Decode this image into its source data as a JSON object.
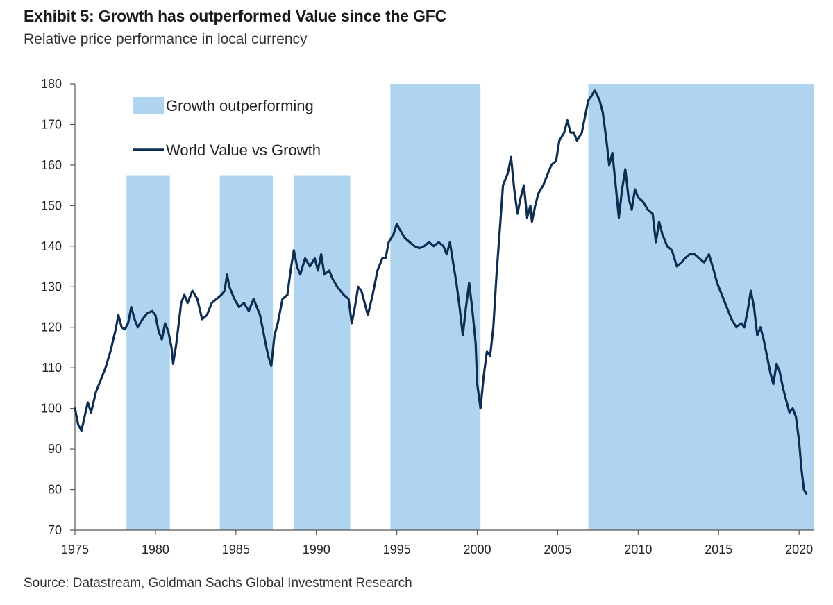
{
  "header": {
    "title": "Exhibit 5: Growth has outperformed Value since the GFC",
    "subtitle": "Relative price performance in local currency"
  },
  "footer": {
    "source": "Source: Datastream, Goldman Sachs Global Investment Research"
  },
  "colors": {
    "band": "#aed4f0",
    "line": "#0d2d52",
    "axis": "#555555"
  },
  "chart_data": {
    "type": "line",
    "title": "",
    "xlabel": "",
    "ylabel": "",
    "xlim": [
      1975,
      2020.9
    ],
    "ylim": [
      70,
      180
    ],
    "x_ticks": [
      1975,
      1980,
      1985,
      1990,
      1995,
      2000,
      2005,
      2010,
      2015,
      2020
    ],
    "y_ticks": [
      70,
      80,
      90,
      100,
      110,
      120,
      130,
      140,
      150,
      160,
      170,
      180
    ],
    "grid": false,
    "legend": {
      "placement": "top-left",
      "entries": [
        {
          "label": "Growth outperforming",
          "kind": "band"
        },
        {
          "label": "World Value vs Growth",
          "kind": "line"
        }
      ]
    },
    "bands": [
      {
        "label": "Growth outperforming",
        "x_start": 1978.2,
        "x_end": 1980.9,
        "y_top": 157.5
      },
      {
        "label": "Growth outperforming",
        "x_start": 1984.0,
        "x_end": 1987.3,
        "y_top": 157.5
      },
      {
        "label": "Growth outperforming",
        "x_start": 1988.6,
        "x_end": 1992.1,
        "y_top": 157.5
      },
      {
        "label": "Growth outperforming",
        "x_start": 1994.6,
        "x_end": 2000.2,
        "y_top": 180
      },
      {
        "label": "Growth outperforming",
        "x_start": 2006.9,
        "x_end": 2020.9,
        "y_top": 180
      }
    ],
    "series": [
      {
        "name": "World Value vs Growth",
        "points": [
          [
            1975.0,
            100
          ],
          [
            1975.2,
            96
          ],
          [
            1975.4,
            94.5
          ],
          [
            1975.6,
            98
          ],
          [
            1975.8,
            101.5
          ],
          [
            1976.0,
            99
          ],
          [
            1976.3,
            104
          ],
          [
            1976.6,
            107
          ],
          [
            1976.9,
            110
          ],
          [
            1977.2,
            114
          ],
          [
            1977.5,
            119
          ],
          [
            1977.7,
            123
          ],
          [
            1977.9,
            120
          ],
          [
            1978.1,
            119.5
          ],
          [
            1978.3,
            121
          ],
          [
            1978.5,
            125
          ],
          [
            1978.7,
            122
          ],
          [
            1978.9,
            120
          ],
          [
            1979.2,
            122
          ],
          [
            1979.5,
            123.5
          ],
          [
            1979.8,
            124
          ],
          [
            1980.0,
            123
          ],
          [
            1980.2,
            119
          ],
          [
            1980.4,
            117
          ],
          [
            1980.6,
            121
          ],
          [
            1980.8,
            119
          ],
          [
            1981.0,
            115
          ],
          [
            1981.1,
            111
          ],
          [
            1981.3,
            116
          ],
          [
            1981.6,
            126
          ],
          [
            1981.8,
            128
          ],
          [
            1982.0,
            126
          ],
          [
            1982.3,
            129
          ],
          [
            1982.6,
            127
          ],
          [
            1982.9,
            122
          ],
          [
            1983.2,
            123
          ],
          [
            1983.5,
            126
          ],
          [
            1983.8,
            127
          ],
          [
            1984.1,
            128
          ],
          [
            1984.3,
            129
          ],
          [
            1984.45,
            133
          ],
          [
            1984.6,
            130
          ],
          [
            1984.9,
            127
          ],
          [
            1985.2,
            125
          ],
          [
            1985.5,
            126
          ],
          [
            1985.8,
            124
          ],
          [
            1986.1,
            127
          ],
          [
            1986.3,
            125
          ],
          [
            1986.5,
            123
          ],
          [
            1986.8,
            117
          ],
          [
            1987.0,
            113
          ],
          [
            1987.2,
            110.5
          ],
          [
            1987.4,
            118
          ],
          [
            1987.6,
            121
          ],
          [
            1987.9,
            127
          ],
          [
            1988.2,
            128
          ],
          [
            1988.4,
            134
          ],
          [
            1988.6,
            139
          ],
          [
            1988.8,
            135
          ],
          [
            1989.0,
            133
          ],
          [
            1989.3,
            137
          ],
          [
            1989.6,
            135
          ],
          [
            1989.9,
            137
          ],
          [
            1990.1,
            134
          ],
          [
            1990.3,
            138
          ],
          [
            1990.5,
            133
          ],
          [
            1990.8,
            134
          ],
          [
            1991.0,
            132
          ],
          [
            1991.3,
            130
          ],
          [
            1991.7,
            128
          ],
          [
            1992.0,
            127
          ],
          [
            1992.2,
            121
          ],
          [
            1992.4,
            125
          ],
          [
            1992.6,
            130
          ],
          [
            1992.8,
            129
          ],
          [
            1993.0,
            126
          ],
          [
            1993.2,
            123
          ],
          [
            1993.5,
            128
          ],
          [
            1993.8,
            134
          ],
          [
            1994.1,
            137
          ],
          [
            1994.3,
            137
          ],
          [
            1994.5,
            141
          ],
          [
            1994.8,
            143
          ],
          [
            1995.0,
            145.5
          ],
          [
            1995.2,
            144
          ],
          [
            1995.5,
            142
          ],
          [
            1995.8,
            141
          ],
          [
            1996.1,
            140
          ],
          [
            1996.4,
            139.5
          ],
          [
            1996.7,
            140
          ],
          [
            1997.0,
            141
          ],
          [
            1997.3,
            140
          ],
          [
            1997.6,
            141
          ],
          [
            1997.9,
            140
          ],
          [
            1998.1,
            138
          ],
          [
            1998.3,
            141
          ],
          [
            1998.5,
            136
          ],
          [
            1998.7,
            131
          ],
          [
            1998.9,
            125
          ],
          [
            1999.1,
            118
          ],
          [
            1999.3,
            125
          ],
          [
            1999.5,
            131
          ],
          [
            1999.7,
            124
          ],
          [
            1999.9,
            116
          ],
          [
            2000.0,
            106
          ],
          [
            2000.2,
            100
          ],
          [
            2000.4,
            108
          ],
          [
            2000.6,
            114
          ],
          [
            2000.8,
            113
          ],
          [
            2001.0,
            120
          ],
          [
            2001.2,
            133
          ],
          [
            2001.4,
            144
          ],
          [
            2001.6,
            155
          ],
          [
            2001.9,
            158
          ],
          [
            2002.1,
            162
          ],
          [
            2002.3,
            154
          ],
          [
            2002.5,
            148
          ],
          [
            2002.7,
            152
          ],
          [
            2002.9,
            155
          ],
          [
            2003.1,
            147
          ],
          [
            2003.3,
            150
          ],
          [
            2003.4,
            146
          ],
          [
            2003.6,
            150
          ],
          [
            2003.8,
            153
          ],
          [
            2004.1,
            155
          ],
          [
            2004.4,
            158
          ],
          [
            2004.6,
            160
          ],
          [
            2004.9,
            161
          ],
          [
            2005.1,
            166
          ],
          [
            2005.4,
            168
          ],
          [
            2005.6,
            171
          ],
          [
            2005.8,
            168
          ],
          [
            2006.0,
            168
          ],
          [
            2006.2,
            166
          ],
          [
            2006.5,
            168
          ],
          [
            2006.7,
            172
          ],
          [
            2006.9,
            176
          ],
          [
            2007.1,
            177
          ],
          [
            2007.3,
            178.5
          ],
          [
            2007.6,
            176
          ],
          [
            2007.8,
            173
          ],
          [
            2008.0,
            167
          ],
          [
            2008.2,
            160
          ],
          [
            2008.4,
            163
          ],
          [
            2008.6,
            155
          ],
          [
            2008.8,
            147
          ],
          [
            2009.0,
            154
          ],
          [
            2009.2,
            159
          ],
          [
            2009.4,
            152
          ],
          [
            2009.6,
            149
          ],
          [
            2009.8,
            154
          ],
          [
            2010.0,
            152
          ],
          [
            2010.3,
            151
          ],
          [
            2010.6,
            149
          ],
          [
            2010.9,
            148
          ],
          [
            2011.1,
            141
          ],
          [
            2011.3,
            146
          ],
          [
            2011.5,
            143
          ],
          [
            2011.8,
            140
          ],
          [
            2012.1,
            139
          ],
          [
            2012.4,
            135
          ],
          [
            2012.7,
            136
          ],
          [
            2012.9,
            137
          ],
          [
            2013.2,
            138
          ],
          [
            2013.5,
            138
          ],
          [
            2013.8,
            137
          ],
          [
            2014.1,
            136
          ],
          [
            2014.4,
            138
          ],
          [
            2014.7,
            134
          ],
          [
            2014.9,
            131
          ],
          [
            2015.2,
            128
          ],
          [
            2015.5,
            125
          ],
          [
            2015.8,
            122
          ],
          [
            2016.1,
            120
          ],
          [
            2016.4,
            121
          ],
          [
            2016.6,
            120
          ],
          [
            2016.8,
            124
          ],
          [
            2017.0,
            129
          ],
          [
            2017.2,
            125
          ],
          [
            2017.4,
            118
          ],
          [
            2017.6,
            120
          ],
          [
            2017.8,
            117
          ],
          [
            2018.0,
            113
          ],
          [
            2018.2,
            109
          ],
          [
            2018.4,
            106
          ],
          [
            2018.6,
            111
          ],
          [
            2018.8,
            109
          ],
          [
            2019.0,
            105
          ],
          [
            2019.2,
            102
          ],
          [
            2019.4,
            99
          ],
          [
            2019.6,
            100
          ],
          [
            2019.8,
            98
          ],
          [
            2020.0,
            92
          ],
          [
            2020.15,
            85
          ],
          [
            2020.3,
            80
          ],
          [
            2020.45,
            79
          ]
        ]
      }
    ]
  }
}
